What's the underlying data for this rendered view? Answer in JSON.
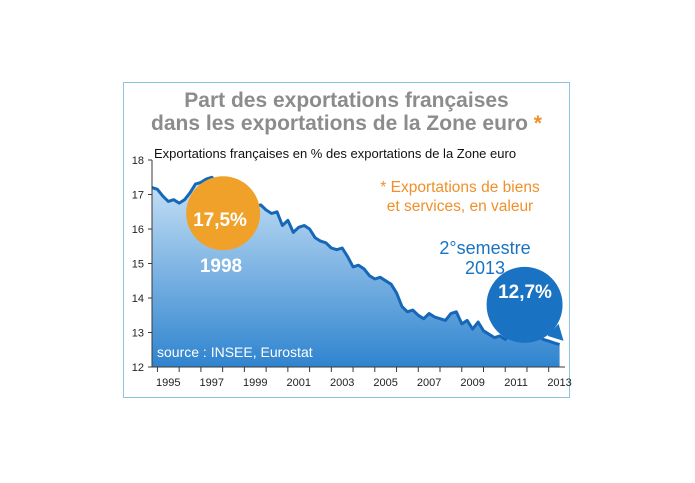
{
  "chart_data": {
    "type": "area",
    "title": [
      "Part des exportations françaises",
      "dans les exportations de la Zone euro"
    ],
    "title_marker": "*",
    "subtitle": "Exportations françaises en % des exportations de la Zone euro",
    "footnote": [
      "* Exportations de biens",
      "et services, en valeur"
    ],
    "source": "source : INSEE, Eurostat",
    "xlim": [
      1994.75,
      2013.75
    ],
    "ylim": [
      12,
      18
    ],
    "yticks": [
      12,
      13,
      14,
      15,
      16,
      17,
      18
    ],
    "xticks": [
      "1995",
      "1997",
      "1999",
      "2001",
      "2003",
      "2005",
      "2007",
      "2009",
      "2011",
      "2013"
    ],
    "series": [
      {
        "x": [
          1994.75,
          1995.0,
          1995.25,
          1995.5,
          1995.75,
          1996.0,
          1996.25,
          1996.5,
          1996.75,
          1997.0,
          1997.25,
          1997.5,
          1997.75,
          1998.0,
          1998.25,
          1998.5,
          1998.75,
          1999.0,
          1999.25,
          1999.5,
          1999.75,
          2000.0,
          2000.25,
          2000.5,
          2000.75,
          2001.0,
          2001.25,
          2001.5,
          2001.75,
          2002.0,
          2002.25,
          2002.5,
          2002.75,
          2003.0,
          2003.25,
          2003.5,
          2003.75,
          2004.0,
          2004.25,
          2004.5,
          2004.75,
          2005.0,
          2005.25,
          2005.5,
          2005.75,
          2006.0,
          2006.25,
          2006.5,
          2006.75,
          2007.0,
          2007.25,
          2007.5,
          2007.75,
          2008.0,
          2008.25,
          2008.5,
          2008.75,
          2009.0,
          2009.25,
          2009.5,
          2009.75,
          2010.0,
          2010.25,
          2010.5,
          2010.75,
          2011.0,
          2011.25,
          2011.5,
          2011.75,
          2012.0,
          2012.25,
          2012.5,
          2012.75,
          2013.0,
          2013.25,
          2013.5
        ],
        "y": [
          17.2,
          17.15,
          16.95,
          16.8,
          16.85,
          16.75,
          16.85,
          17.05,
          17.3,
          17.35,
          17.45,
          17.5,
          17.35,
          17.45,
          17.35,
          17.0,
          16.85,
          16.95,
          16.8,
          16.65,
          16.7,
          16.55,
          16.45,
          16.5,
          16.1,
          16.25,
          15.9,
          16.05,
          16.1,
          16.0,
          15.75,
          15.65,
          15.6,
          15.45,
          15.4,
          15.45,
          15.2,
          14.9,
          14.95,
          14.85,
          14.65,
          14.55,
          14.6,
          14.5,
          14.4,
          14.15,
          13.75,
          13.6,
          13.65,
          13.5,
          13.4,
          13.55,
          13.45,
          13.4,
          13.35,
          13.55,
          13.6,
          13.25,
          13.35,
          13.1,
          13.3,
          13.05,
          12.95,
          12.85,
          12.9,
          12.8,
          13.0,
          12.85,
          12.75,
          12.8,
          12.8,
          12.9,
          12.8,
          12.75,
          12.7,
          12.65
        ]
      }
    ],
    "annotations": [
      {
        "bubble_text": "17,5%",
        "label": "1998",
        "x": 1998.0,
        "y": 17.5,
        "color": "#f0a12a"
      },
      {
        "bubble_text": "12,7%",
        "label": [
          "2°semestre",
          "2013"
        ],
        "x": 2013.5,
        "y": 12.7,
        "color": "#1a73c2"
      }
    ],
    "colors": {
      "line": "#1667b8",
      "area_top": "#c9e2f6",
      "area_bottom": "#2f84cf",
      "axis": "#3a3a3a",
      "title": "#8c8c8c",
      "accent": "#f0902a",
      "frame": "#8cc4e6"
    },
    "grid": false
  }
}
